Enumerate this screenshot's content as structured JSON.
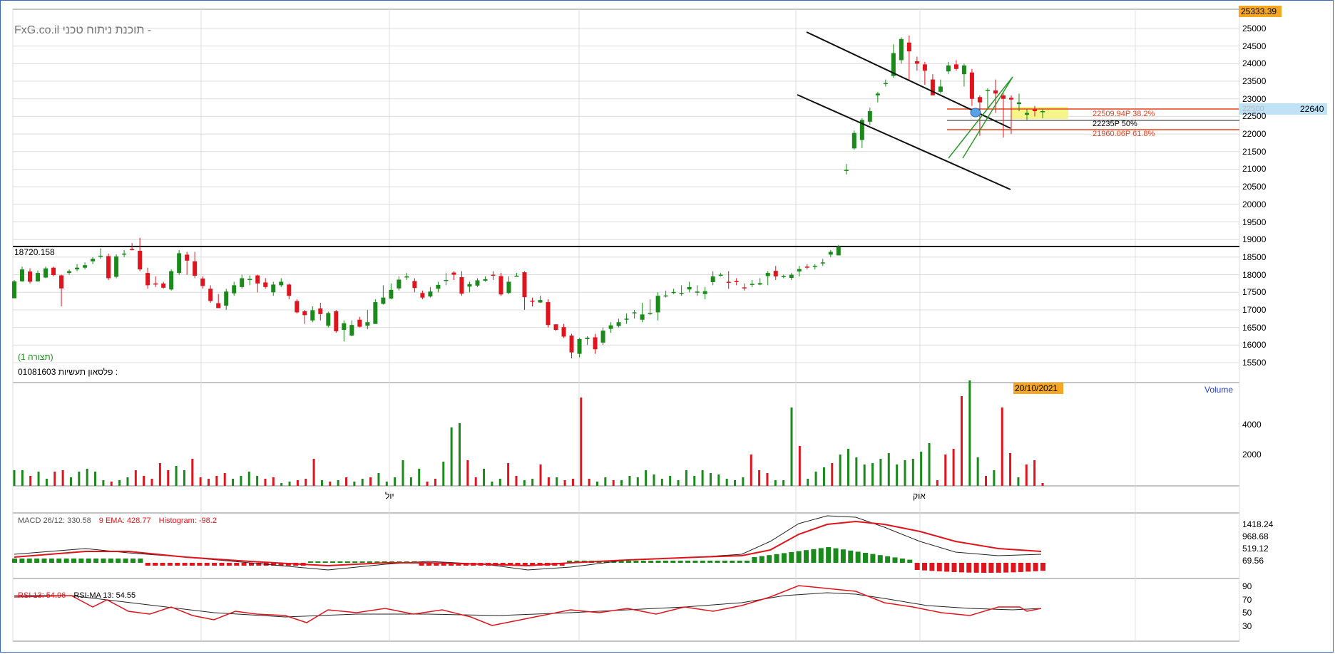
{
  "header": {
    "site": "FxG.co.il",
    "tagline": "תוכנת ניתוח טכני -",
    "last_price_box": "25333.39",
    "current_price_box": "22640",
    "faded_price": "22500"
  },
  "price_panel": {
    "y_ticks": [
      "25000",
      "24500",
      "24000",
      "23500",
      "23000",
      "22500",
      "22000",
      "21500",
      "21000",
      "20500",
      "20000",
      "19500",
      "19000",
      "18500",
      "18000",
      "17500",
      "17000",
      "16500",
      "16000",
      "15500"
    ],
    "hline_label": "18720.158",
    "view_label": "(תצורה 1)",
    "instrument_code": "01081603",
    "instrument_name": "פלסאון תעשיות :",
    "fib_labels": [
      "22509.94P  38.2%",
      "22235P  50%",
      "21960.06P  61.8%"
    ]
  },
  "volume_panel": {
    "date_box": "20/10/2021",
    "label": "Volume",
    "y_ticks": [
      "4000",
      "2000"
    ],
    "x_labels": [
      "יול",
      "אוק"
    ]
  },
  "macd_panel": {
    "title_macd": "MACD 26/12: 330.58",
    "title_ema": "9 EMA: 428.77",
    "title_hist": "Histogram: -98.2",
    "y_ticks": [
      "1418.24",
      "968.68",
      "519.12",
      "69.56"
    ]
  },
  "rsi_panel": {
    "title_rsi": "RSI 13: 54.96",
    "title_ma": "RSI-MA 13: 54.55",
    "y_ticks": [
      "90",
      "70",
      "50",
      "30"
    ]
  },
  "colors": {
    "up": "#1a8a1a",
    "down": "#e0141c",
    "orange": "#f5a623",
    "fib_red": "#e8401c",
    "highlight_yellow": "#f5f58a",
    "blue_text": "#2040e0"
  },
  "chart_data": {
    "type": "candlestick",
    "ohlc_approx": [
      [
        17330,
        17810,
        17330,
        17850
      ],
      [
        17810,
        18150,
        17800,
        18230
      ],
      [
        18090,
        17800,
        17750,
        18180
      ],
      [
        17810,
        18050,
        17800,
        18120
      ],
      [
        17920,
        18180,
        17900,
        18230
      ],
      [
        18200,
        17990,
        17950,
        18230
      ],
      [
        17980,
        17610,
        17100,
        18000
      ],
      [
        18050,
        18100,
        18000,
        18150
      ],
      [
        18150,
        18200,
        18100,
        18300
      ],
      [
        18200,
        18270,
        18150,
        18350
      ],
      [
        18380,
        18450,
        18300,
        18500
      ],
      [
        18530,
        18540,
        18450,
        18750
      ],
      [
        18530,
        17900,
        17850,
        18600
      ],
      [
        17940,
        18520,
        17900,
        18580
      ],
      [
        18600,
        18600,
        18500,
        18700
      ],
      [
        18730,
        18710,
        18690,
        18900
      ],
      [
        18680,
        18150,
        18100,
        19050
      ],
      [
        18050,
        17700,
        17600,
        18200
      ],
      [
        17750,
        17720,
        17650,
        17950
      ],
      [
        17750,
        17630,
        17600,
        17800
      ],
      [
        17580,
        18100,
        17550,
        18150
      ],
      [
        18050,
        18610,
        18000,
        18700
      ],
      [
        18570,
        18400,
        18000,
        18650
      ],
      [
        18380,
        17970,
        17900,
        18650
      ],
      [
        17890,
        17680,
        17600,
        17950
      ],
      [
        17600,
        17250,
        17200,
        17700
      ],
      [
        17190,
        17050,
        17050,
        17450
      ],
      [
        17120,
        17520,
        17000,
        17600
      ],
      [
        17470,
        17700,
        17400,
        17800
      ],
      [
        17650,
        17900,
        17600,
        18000
      ],
      [
        17860,
        17880,
        17700,
        17980
      ],
      [
        17980,
        17750,
        17500,
        18000
      ],
      [
        17780,
        17650,
        17600,
        17900
      ],
      [
        17500,
        17720,
        17400,
        17800
      ],
      [
        17700,
        17800,
        17650,
        17900
      ],
      [
        17720,
        17400,
        17300,
        17750
      ],
      [
        17250,
        16930,
        16900,
        17300
      ],
      [
        16960,
        16850,
        16600,
        17000
      ],
      [
        16700,
        16990,
        16650,
        17100
      ],
      [
        17040,
        16880,
        16700,
        17200
      ],
      [
        16550,
        16910,
        16500,
        16950
      ],
      [
        16960,
        16390,
        16350,
        17000
      ],
      [
        16430,
        16620,
        16100,
        16700
      ],
      [
        16270,
        16570,
        16250,
        16700
      ],
      [
        16720,
        16520,
        16500,
        16800
      ],
      [
        16550,
        16650,
        16450,
        17000
      ],
      [
        16600,
        17220,
        16600,
        17300
      ],
      [
        17170,
        17350,
        17150,
        17700
      ],
      [
        17320,
        17570,
        17300,
        17750
      ],
      [
        17610,
        17860,
        17550,
        17950
      ],
      [
        17940,
        17950,
        17850,
        18050
      ],
      [
        17820,
        17620,
        17500,
        17900
      ],
      [
        17480,
        17350,
        17300,
        17550
      ],
      [
        17380,
        17520,
        17350,
        17650
      ],
      [
        17600,
        17710,
        17500,
        17800
      ],
      [
        17840,
        17850,
        17700,
        18050
      ],
      [
        18060,
        18000,
        17850,
        18100
      ],
      [
        17930,
        17460,
        17400,
        18100
      ],
      [
        17660,
        17730,
        17500,
        17800
      ],
      [
        17690,
        17840,
        17650,
        17900
      ],
      [
        17830,
        17870,
        17800,
        17950
      ],
      [
        18000,
        17980,
        17850,
        18100
      ],
      [
        17960,
        17440,
        17400,
        18050
      ],
      [
        17480,
        17800,
        17450,
        17950
      ],
      [
        17960,
        17970,
        17950,
        18050
      ],
      [
        18070,
        17360,
        17000,
        18100
      ],
      [
        17260,
        17240,
        17100,
        17350
      ],
      [
        17210,
        17280,
        17200,
        17400
      ],
      [
        17220,
        16570,
        16500,
        17300
      ],
      [
        16590,
        16430,
        16400,
        16550
      ],
      [
        16510,
        16240,
        16200,
        16600
      ],
      [
        16270,
        15790,
        15620,
        16320
      ],
      [
        15750,
        16170,
        15650,
        16200
      ],
      [
        16170,
        16210,
        16000,
        16250
      ],
      [
        16220,
        15880,
        15750,
        16320
      ],
      [
        16070,
        16410,
        16000,
        16500
      ],
      [
        16460,
        16560,
        16350,
        16650
      ],
      [
        16540,
        16650,
        16500,
        16750
      ],
      [
        16750,
        16750,
        16600,
        16900
      ],
      [
        16920,
        16930,
        16750,
        17000
      ],
      [
        16720,
        16870,
        16650,
        17200
      ],
      [
        16900,
        16910,
        16850,
        17300
      ],
      [
        16930,
        17400,
        16700,
        17500
      ],
      [
        17400,
        17410,
        17350,
        17550
      ],
      [
        17500,
        17510,
        17450,
        17600
      ],
      [
        17450,
        17480,
        17400,
        17700
      ],
      [
        17580,
        17650,
        17500,
        17800
      ],
      [
        17510,
        17520,
        17400,
        17700
      ],
      [
        17450,
        17530,
        17300,
        17650
      ],
      [
        17790,
        17950,
        17700,
        18100
      ],
      [
        17990,
        18000,
        17950,
        18050
      ],
      [
        17800,
        17790,
        17600,
        18100
      ],
      [
        17820,
        17810,
        17700,
        17900
      ],
      [
        17640,
        17610,
        17550,
        17750
      ],
      [
        17710,
        17740,
        17650,
        17850
      ],
      [
        17720,
        17760,
        17700,
        17900
      ],
      [
        17960,
        18050,
        17700,
        18100
      ],
      [
        18110,
        17950,
        17850,
        18250
      ],
      [
        17940,
        17960,
        17900,
        18000
      ],
      [
        17910,
        18000,
        17850,
        18050
      ],
      [
        18090,
        18160,
        17950,
        18250
      ],
      [
        18230,
        18200,
        18150,
        18300
      ],
      [
        18250,
        18250,
        18150,
        18300
      ],
      [
        18350,
        18350,
        18250,
        18450
      ],
      [
        18570,
        18650,
        18500,
        18700
      ],
      [
        18550,
        18800,
        18550,
        18850
      ],
      [
        20980,
        20980,
        20850,
        21150
      ],
      [
        21590,
        22030,
        21550,
        22100
      ],
      [
        21830,
        22400,
        21600,
        22450
      ],
      [
        22350,
        22650,
        22250,
        22750
      ],
      [
        23100,
        23150,
        22900,
        23200
      ],
      [
        23450,
        23450,
        23350,
        23550
      ],
      [
        23650,
        24300,
        23600,
        24550
      ],
      [
        24100,
        24700,
        24000,
        24750
      ],
      [
        24600,
        24350,
        23500,
        24800
      ],
      [
        24070,
        24000,
        23800,
        24200
      ],
      [
        23980,
        23800,
        23400,
        24050
      ],
      [
        23550,
        23100,
        23150,
        23700
      ],
      [
        23200,
        23350,
        23150,
        23550
      ],
      [
        23780,
        23950,
        23700,
        24050
      ],
      [
        23980,
        23850,
        23800,
        24100
      ],
      [
        23700,
        23950,
        23350,
        24000
      ],
      [
        23750,
        23000,
        22800,
        23850
      ],
      [
        23050,
        22900,
        21950,
        23100
      ],
      [
        23250,
        23250,
        22700,
        23300
      ],
      [
        23240,
        23150,
        22600,
        23550
      ],
      [
        23100,
        23000,
        21900,
        23150
      ],
      [
        23030,
        22980,
        22000,
        23100
      ],
      [
        22850,
        22900,
        22650,
        23150
      ],
      [
        22550,
        22600,
        22400,
        22700
      ],
      [
        22700,
        22650,
        22500,
        22800
      ],
      [
        22640,
        22650,
        22450,
        22700
      ]
    ],
    "horizontal_level": 18720.158,
    "fib_levels": [
      22509.94,
      22235,
      21960.06
    ],
    "y_range": [
      15500,
      25333.39
    ]
  }
}
